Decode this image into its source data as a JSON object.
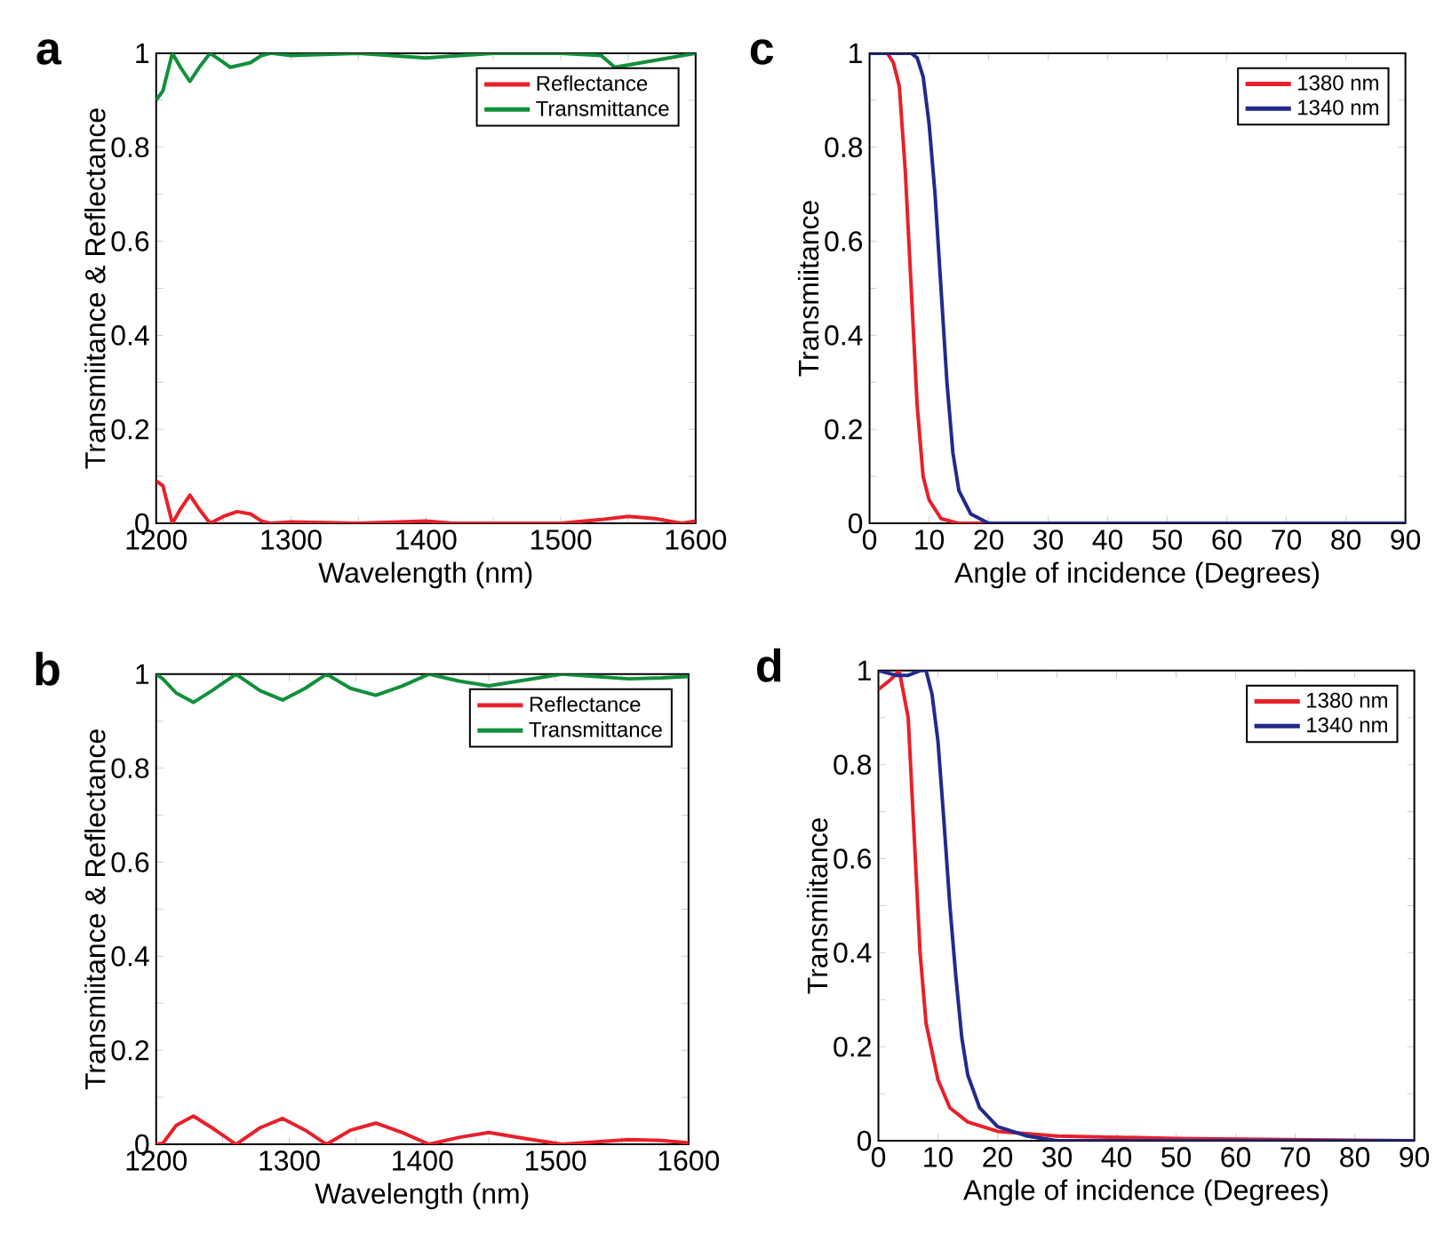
{
  "chart_data": [
    {
      "type": "line",
      "title": "a",
      "xlabel": "Wavelength (nm)",
      "ylabel": "Transmiitance  &  Reflectance",
      "legend": "top right",
      "xlim": [
        1200,
        1600
      ],
      "ylim": [
        0,
        1
      ],
      "xticks": [
        1200,
        {
          "value": 1250,
          "label": null
        },
        1300,
        {
          "value": 1350,
          "label": null
        },
        1400,
        {
          "value": 1450,
          "label": null
        },
        1500,
        {
          "value": 1550,
          "label": null
        },
        1600
      ],
      "yticks": [
        0,
        {
          "value": 0.1,
          "label": null
        },
        0.2,
        {
          "value": 0.3,
          "label": null
        },
        0.4,
        {
          "value": 0.5,
          "label": null
        },
        0.6,
        {
          "value": 0.7,
          "label": null
        },
        0.8,
        {
          "value": 0.9,
          "label": null
        },
        1
      ],
      "series": [
        {
          "name": "Reflectance",
          "color": "#e8202a",
          "x": [
            1200,
            1205,
            1212,
            1218,
            1225,
            1232,
            1240,
            1250,
            1260,
            1270,
            1278,
            1285,
            1300,
            1350,
            1400,
            1420,
            1500,
            1530,
            1550,
            1570,
            1590,
            1600
          ],
          "values": [
            0.09,
            0.08,
            0.0,
            0.03,
            0.06,
            0.03,
            0.0,
            0.015,
            0.025,
            0.02,
            0.005,
            0.0,
            0.003,
            0.0,
            0.005,
            0.0,
            0.0,
            0.008,
            0.015,
            0.01,
            0.0,
            0.005
          ]
        },
        {
          "name": "Transmittance",
          "color": "#12903a",
          "x": [
            1200,
            1205,
            1212,
            1218,
            1225,
            1232,
            1240,
            1250,
            1255,
            1270,
            1278,
            1285,
            1300,
            1350,
            1400,
            1450,
            1500,
            1530,
            1540,
            1560,
            1580,
            1600
          ],
          "values": [
            0.9,
            0.92,
            1.0,
            0.97,
            0.94,
            0.97,
            1.0,
            0.98,
            0.97,
            0.98,
            0.995,
            1.0,
            0.995,
            1.0,
            0.99,
            1.0,
            1.0,
            0.995,
            0.97,
            0.98,
            0.99,
            1.0
          ]
        }
      ]
    },
    {
      "type": "line",
      "title": "c",
      "xlabel": "Angle of incidence (Degrees)",
      "ylabel": "Transmiitance",
      "legend": "top right",
      "xlim": [
        0,
        90
      ],
      "ylim": [
        0,
        1
      ],
      "xticks": [
        0,
        10,
        20,
        30,
        40,
        50,
        60,
        70,
        80,
        90
      ],
      "yticks": [
        0,
        {
          "value": 0.1,
          "label": null
        },
        0.2,
        {
          "value": 0.3,
          "label": null
        },
        0.4,
        {
          "value": 0.5,
          "label": null
        },
        0.6,
        {
          "value": 0.7,
          "label": null
        },
        0.8,
        {
          "value": 0.9,
          "label": null
        },
        1
      ],
      "series": [
        {
          "name": "1380 nm",
          "color": "#e8202a",
          "x": [
            0,
            3,
            4,
            5,
            6,
            7,
            8,
            9,
            10,
            12,
            15,
            90
          ],
          "values": [
            1.0,
            1.0,
            0.98,
            0.93,
            0.75,
            0.5,
            0.25,
            0.1,
            0.05,
            0.01,
            0.0,
            0.0
          ]
        },
        {
          "name": "1340 nm",
          "color": "#222a8c",
          "x": [
            0,
            7,
            8,
            9,
            10,
            11,
            12,
            13,
            14,
            15,
            17,
            20,
            90
          ],
          "values": [
            1.0,
            1.0,
            0.99,
            0.95,
            0.85,
            0.7,
            0.5,
            0.3,
            0.15,
            0.07,
            0.02,
            0.0,
            0.0
          ]
        }
      ]
    },
    {
      "type": "line",
      "title": "b",
      "xlabel": "Wavelength (nm)",
      "ylabel": "Transmiitance  &  Reflectance",
      "legend": "top right",
      "xlim": [
        1200,
        1600
      ],
      "ylim": [
        0,
        1
      ],
      "xticks": [
        1200,
        {
          "value": 1250,
          "label": null
        },
        1300,
        {
          "value": 1350,
          "label": null
        },
        1400,
        {
          "value": 1450,
          "label": null
        },
        1500,
        {
          "value": 1550,
          "label": null
        },
        1600
      ],
      "yticks": [
        0,
        {
          "value": 0.1,
          "label": null
        },
        0.2,
        {
          "value": 0.3,
          "label": null
        },
        0.4,
        {
          "value": 0.5,
          "label": null
        },
        0.6,
        {
          "value": 0.7,
          "label": null
        },
        0.8,
        {
          "value": 0.9,
          "label": null
        },
        1
      ],
      "series": [
        {
          "name": "Reflectance",
          "color": "#e8202a",
          "x": [
            1200,
            1205,
            1215,
            1228,
            1242,
            1260,
            1278,
            1295,
            1312,
            1328,
            1346,
            1365,
            1385,
            1405,
            1428,
            1450,
            1478,
            1505,
            1530,
            1555,
            1580,
            1600
          ],
          "values": [
            0.0,
            0.002,
            0.04,
            0.06,
            0.035,
            0.0,
            0.035,
            0.055,
            0.03,
            0.0,
            0.03,
            0.045,
            0.025,
            0.0,
            0.015,
            0.025,
            0.012,
            0.0,
            0.005,
            0.01,
            0.008,
            0.003
          ]
        },
        {
          "name": "Transmittance",
          "color": "#12903a",
          "x": [
            1200,
            1205,
            1215,
            1228,
            1242,
            1260,
            1278,
            1295,
            1312,
            1328,
            1346,
            1365,
            1385,
            1405,
            1428,
            1450,
            1478,
            1505,
            1530,
            1555,
            1580,
            1600
          ],
          "values": [
            1.0,
            0.99,
            0.96,
            0.94,
            0.965,
            1.0,
            0.965,
            0.945,
            0.97,
            1.0,
            0.97,
            0.955,
            0.975,
            1.0,
            0.985,
            0.975,
            0.988,
            1.0,
            0.995,
            0.99,
            0.992,
            0.995
          ]
        }
      ]
    },
    {
      "type": "line",
      "title": "d",
      "xlabel": "Angle of incidence (Degrees)",
      "ylabel": "Transmiitance",
      "legend": "top right",
      "xlim": [
        0,
        90
      ],
      "ylim": [
        0,
        1
      ],
      "xticks": [
        0,
        10,
        20,
        30,
        40,
        50,
        60,
        70,
        80,
        90
      ],
      "yticks": [
        0,
        {
          "value": 0.1,
          "label": null
        },
        0.2,
        {
          "value": 0.3,
          "label": null
        },
        0.4,
        {
          "value": 0.5,
          "label": null
        },
        0.6,
        {
          "value": 0.7,
          "label": null
        },
        0.8,
        {
          "value": 0.9,
          "label": null
        },
        1
      ],
      "series": [
        {
          "name": "1380 nm",
          "color": "#e8202a",
          "x": [
            0,
            2,
            3.5,
            5,
            6,
            7,
            8,
            10,
            12,
            15,
            20,
            30,
            50,
            90
          ],
          "values": [
            0.96,
            0.98,
            1.0,
            0.9,
            0.65,
            0.4,
            0.25,
            0.13,
            0.07,
            0.04,
            0.02,
            0.01,
            0.005,
            0.0
          ]
        },
        {
          "name": "1340 nm",
          "color": "#222a8c",
          "x": [
            0,
            3,
            5,
            7,
            8,
            9,
            10,
            11,
            12,
            13,
            14,
            15,
            17,
            20,
            25,
            30,
            90
          ],
          "values": [
            1.0,
            0.99,
            0.99,
            1.0,
            1.0,
            0.95,
            0.85,
            0.68,
            0.5,
            0.35,
            0.22,
            0.14,
            0.07,
            0.03,
            0.01,
            0.0,
            0.0
          ]
        }
      ]
    }
  ]
}
